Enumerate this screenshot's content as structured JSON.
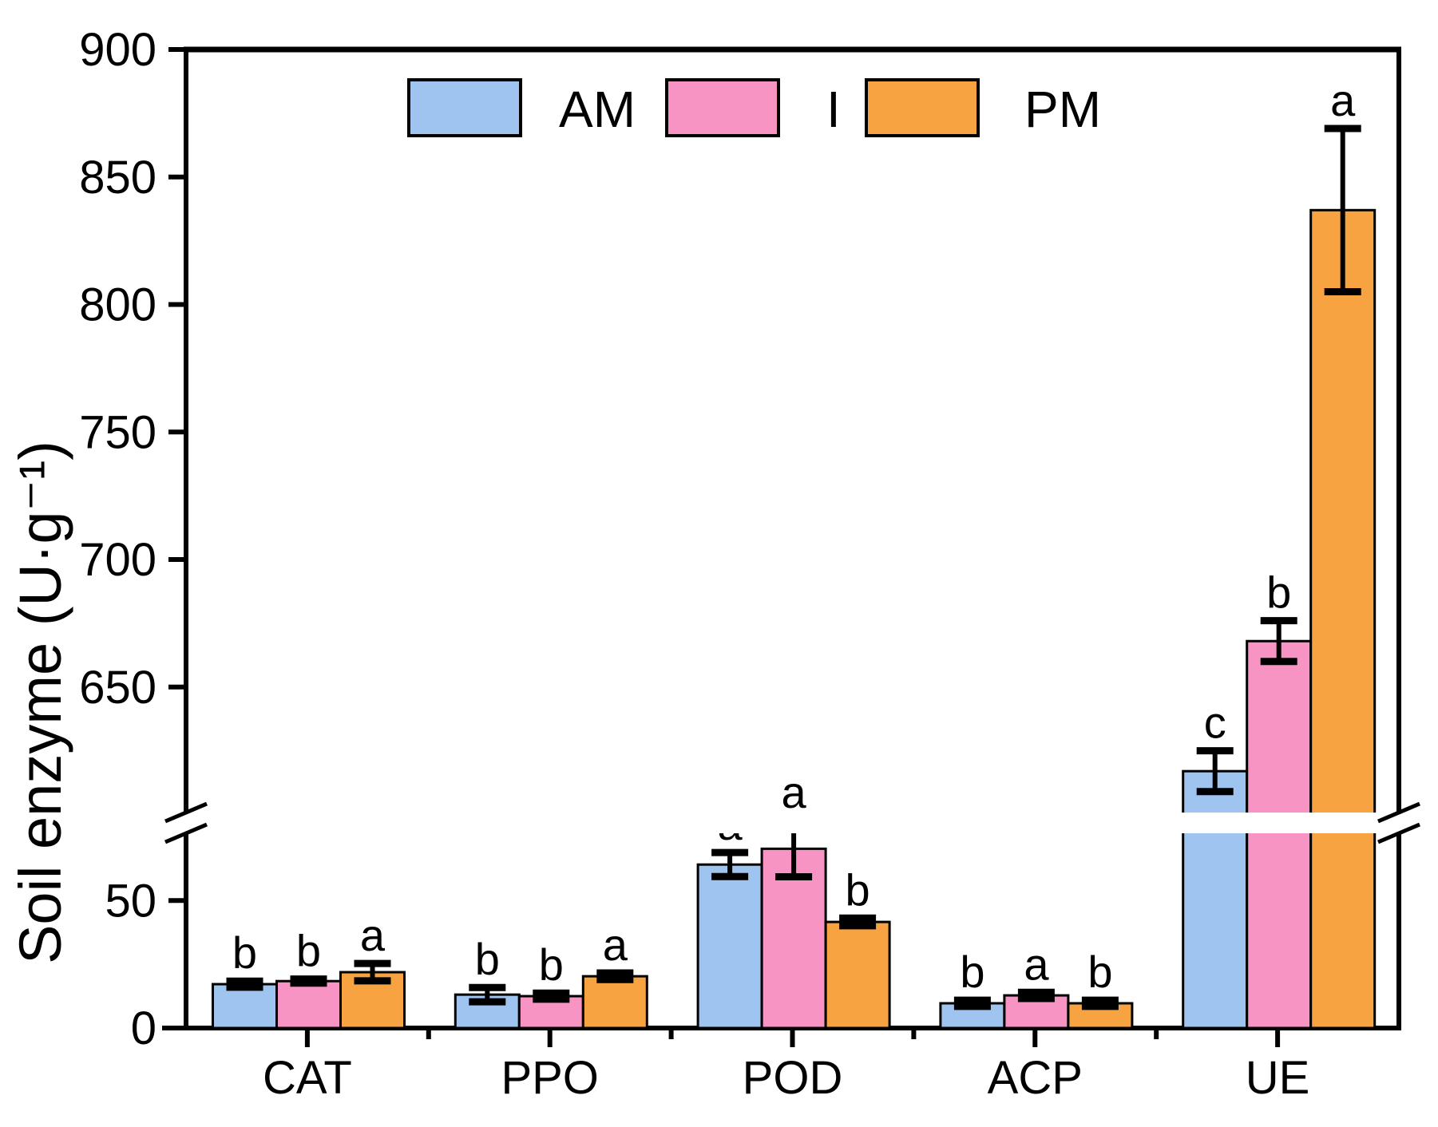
{
  "chart_data": {
    "type": "bar",
    "title": "",
    "ylabel": "Soil enzyme (U·g⁻¹)",
    "xlabel": "",
    "categories": [
      "CAT",
      "PPO",
      "POD",
      "ACP",
      "UE"
    ],
    "series": [
      {
        "name": "AM",
        "color": "#a0c4f0",
        "values": [
          17.2,
          13.1,
          64.1,
          9.7,
          617
        ],
        "errors": [
          1.2,
          2.8,
          4.7,
          1.2,
          8
        ],
        "letters": [
          "b",
          "b",
          "a",
          "b",
          "c"
        ]
      },
      {
        "name": "I",
        "color": "#f794c4",
        "values": [
          18.4,
          12.5,
          70.3,
          12.8,
          668
        ],
        "errors": [
          0.8,
          1.2,
          11,
          1.2,
          8
        ],
        "letters": [
          "b",
          "b",
          "a",
          "a",
          "b"
        ]
      },
      {
        "name": "PM",
        "color": "#f8a342",
        "values": [
          21.9,
          20.3,
          41.6,
          9.7,
          837
        ],
        "errors": [
          3.4,
          1.3,
          1.5,
          1.2,
          32
        ],
        "letters": [
          "a",
          "a",
          "b",
          "b",
          "a"
        ]
      }
    ],
    "axis_break": {
      "lower_section_ticks": [
        0,
        50
      ],
      "lower_section_max": 77,
      "upper_section_ticks": [
        650,
        700,
        750,
        800,
        850,
        900
      ],
      "upper_section_min": 601,
      "ylim": [
        0,
        900
      ]
    },
    "legend_position": "top-center",
    "grid": false,
    "bar_edge_color": "#000000",
    "error_bar_color": "#000000"
  }
}
